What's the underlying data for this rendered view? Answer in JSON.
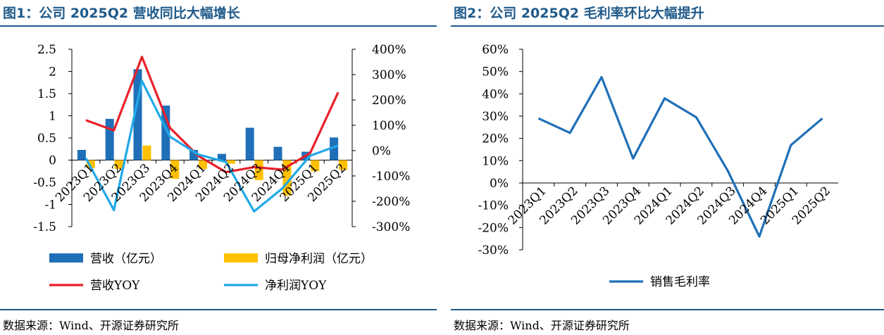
{
  "figures": [
    {
      "title": "图1：公司 2025Q2 营收同比大幅增长",
      "source": "数据来源：Wind、开源证券研究所"
    },
    {
      "title": "图2：公司 2025Q2 毛利率环比大幅提升",
      "source": "数据来源：Wind、开源证券研究所"
    }
  ],
  "colors": {
    "revenue": "#1f6fb8",
    "net_profit": "#ffc000",
    "revenue_yoy": "#e8202a",
    "profit_yoy": "#20a9e8",
    "gross_margin": "#1f6fb8",
    "title": "#1f5a8a"
  },
  "chart_data": [
    {
      "type": "bar+line",
      "title": "图1：公司 2025Q2 营收同比大幅增长",
      "categories": [
        "2023Q1",
        "2023Q2",
        "2023Q3",
        "2023Q4",
        "2024Q1",
        "2024Q2",
        "2024Q3",
        "2024Q4",
        "2025Q1",
        "2025Q2"
      ],
      "left_axis": {
        "ylim": [
          -1.5,
          2.5
        ],
        "ticks": [
          "2.5",
          "2",
          "1.5",
          "1",
          "0.5",
          "0",
          "-0.5",
          "-1",
          "-1.5"
        ],
        "tick_values": [
          2.5,
          2,
          1.5,
          1,
          0.5,
          0,
          -0.5,
          -1,
          -1.5
        ]
      },
      "right_axis": {
        "ylim": [
          -300,
          400
        ],
        "ticks": [
          "400%",
          "300%",
          "200%",
          "100%",
          "0%",
          "-100%",
          "-200%",
          "-300%"
        ],
        "tick_values": [
          400,
          300,
          200,
          100,
          0,
          -100,
          -200,
          -300
        ]
      },
      "bar_series": [
        {
          "name": "营收（亿元）",
          "color": "#1f6fb8",
          "axis": "left",
          "values": [
            0.23,
            0.93,
            2.05,
            1.23,
            0.23,
            0.14,
            0.73,
            0.3,
            0.19,
            0.51
          ]
        },
        {
          "name": "归母净利润（亿元）",
          "color": "#ffc000",
          "axis": "left",
          "values": [
            -0.18,
            -0.2,
            0.33,
            -0.42,
            -0.2,
            -0.08,
            -0.45,
            -0.8,
            -0.25,
            -0.22
          ]
        }
      ],
      "line_series": [
        {
          "name": "营收YOY",
          "color": "#e8202a",
          "axis": "right",
          "values": [
            120,
            80,
            370,
            90,
            -20,
            -85,
            -65,
            -75,
            -10,
            230
          ]
        },
        {
          "name": "净利润YOY",
          "color": "#20a9e8",
          "axis": "right",
          "values": [
            -30,
            -235,
            275,
            55,
            -15,
            -45,
            -240,
            -150,
            -20,
            20
          ]
        }
      ],
      "legend": [
        {
          "label": "营收（亿元）",
          "kind": "bar",
          "color": "#1f6fb8"
        },
        {
          "label": "归母净利润（亿元）",
          "kind": "bar",
          "color": "#ffc000"
        },
        {
          "label": "营收YOY",
          "kind": "line",
          "color": "#e8202a"
        },
        {
          "label": "净利润YOY",
          "kind": "line",
          "color": "#20a9e8"
        }
      ],
      "legend_position": "bottom"
    },
    {
      "type": "line",
      "title": "图2：公司 2025Q2 毛利率环比大幅提升",
      "categories": [
        "2023Q1",
        "2023Q2",
        "2023Q3",
        "2023Q4",
        "2024Q1",
        "2024Q2",
        "2024Q3",
        "2024Q4",
        "2025Q1",
        "2025Q2"
      ],
      "axis": {
        "ylim": [
          -30,
          60
        ],
        "ticks": [
          "60%",
          "50%",
          "40%",
          "30%",
          "20%",
          "10%",
          "0%",
          "-10%",
          "-20%",
          "-30%"
        ],
        "tick_values": [
          60,
          50,
          40,
          30,
          20,
          10,
          0,
          -10,
          -20,
          -30
        ]
      },
      "series": [
        {
          "name": "销售毛利率",
          "color": "#1f6fb8",
          "values": [
            29,
            22.5,
            47.5,
            11,
            38,
            29.5,
            5.5,
            -24,
            17,
            29
          ]
        }
      ],
      "legend": [
        {
          "label": "销售毛利率",
          "kind": "line",
          "color": "#1f6fb8"
        }
      ],
      "legend_position": "bottom"
    }
  ]
}
